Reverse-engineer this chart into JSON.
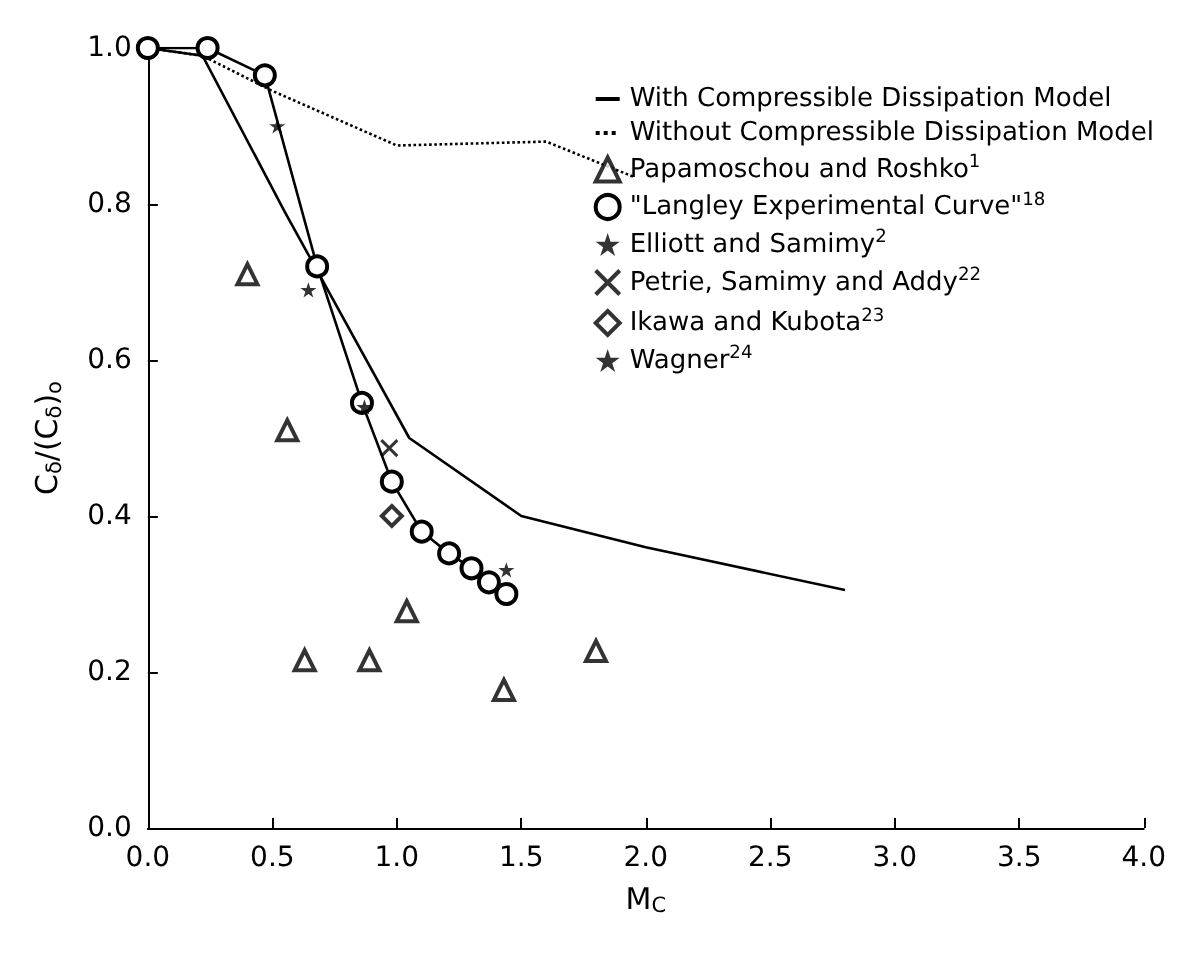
{
  "chart_data": {
    "type": "scatter",
    "xlabel": "M$_{C}$",
    "ylabel": "C$_{δ}$/(C$_{δ}$)$_{o}$",
    "xlim": [
      0,
      4
    ],
    "ylim": [
      0,
      1
    ],
    "xticks": [
      {
        "value": 0,
        "label": "0.0"
      },
      {
        "value": 0.5,
        "label": "0.5"
      },
      {
        "value": 1,
        "label": "1.0"
      },
      {
        "value": 1.5,
        "label": "1.5"
      },
      {
        "value": 2,
        "label": "2.0"
      },
      {
        "value": 2.5,
        "label": "2.5"
      },
      {
        "value": 3,
        "label": "3.0"
      },
      {
        "value": 3.5,
        "label": "3.5"
      },
      {
        "value": 4,
        "label": "4.0"
      }
    ],
    "yticks": [
      {
        "value": 0,
        "label": "0.0"
      },
      0.2,
      0.4,
      0.6,
      0.8,
      {
        "value": 1,
        "label": "1.0"
      }
    ],
    "grid": false,
    "legend": "top right",
    "series": [
      {
        "name": "With Compressible Dissipation Model",
        "type": "line",
        "marker": "none",
        "line_style": "solid",
        "color": "#000000",
        "x": [
          0,
          0.22,
          0.55,
          1.05,
          1.5,
          2.0,
          2.8
        ],
        "values": [
          1.0,
          0.99,
          0.79,
          0.5,
          0.4,
          0.36,
          0.305
        ]
      },
      {
        "name": "Without Compressible Dissipation Model",
        "type": "line",
        "marker": "none",
        "line_style": "dotted",
        "color": "#000000",
        "x": [
          0,
          0.22,
          0.5,
          1.0,
          1.6,
          1.95
        ],
        "values": [
          1.0,
          0.99,
          0.945,
          0.875,
          0.88,
          0.835
        ]
      },
      {
        "name": "Papamoschou and Roshko$^{1}$",
        "marker": "triangle",
        "color": "#000000",
        "x": [
          0.4,
          0.56,
          0.63,
          0.89,
          1.04,
          1.43,
          1.8
        ],
        "values": [
          0.71,
          0.51,
          0.215,
          0.215,
          0.278,
          0.177,
          0.227
        ]
      },
      {
        "name": "\"Langley Experimental Curve\"$^{18}$",
        "type": "line",
        "marker": "circle",
        "line_style": "solid",
        "color": "#000000",
        "x": [
          0,
          0.24,
          0.47,
          0.68,
          0.86,
          0.98,
          1.1,
          1.21,
          1.3,
          1.37,
          1.44
        ],
        "values": [
          1.0,
          1.0,
          0.965,
          0.72,
          0.545,
          0.444,
          0.38,
          0.352,
          0.333,
          0.315,
          0.3
        ]
      },
      {
        "name": "Elliott and Samimy$^{2}$",
        "marker": "star",
        "color": "#000000",
        "x": [
          0.52,
          0.645,
          0.87
        ],
        "values": [
          0.9,
          0.69,
          0.54
        ]
      },
      {
        "name": "Petrie, Samimy and Addy$^{22}$",
        "marker": "cross",
        "color": "#000000",
        "x": [
          0.97
        ],
        "values": [
          0.487
        ]
      },
      {
        "name": "Ikawa and Kubota$^{23}$",
        "marker": "diamond",
        "color": "#000000",
        "x": [
          0.98
        ],
        "values": [
          0.4
        ]
      },
      {
        "name": "Wagner$^{24}$",
        "marker": "star",
        "color": "#000000",
        "x": [
          1.44
        ],
        "values": [
          0.331
        ]
      }
    ]
  }
}
